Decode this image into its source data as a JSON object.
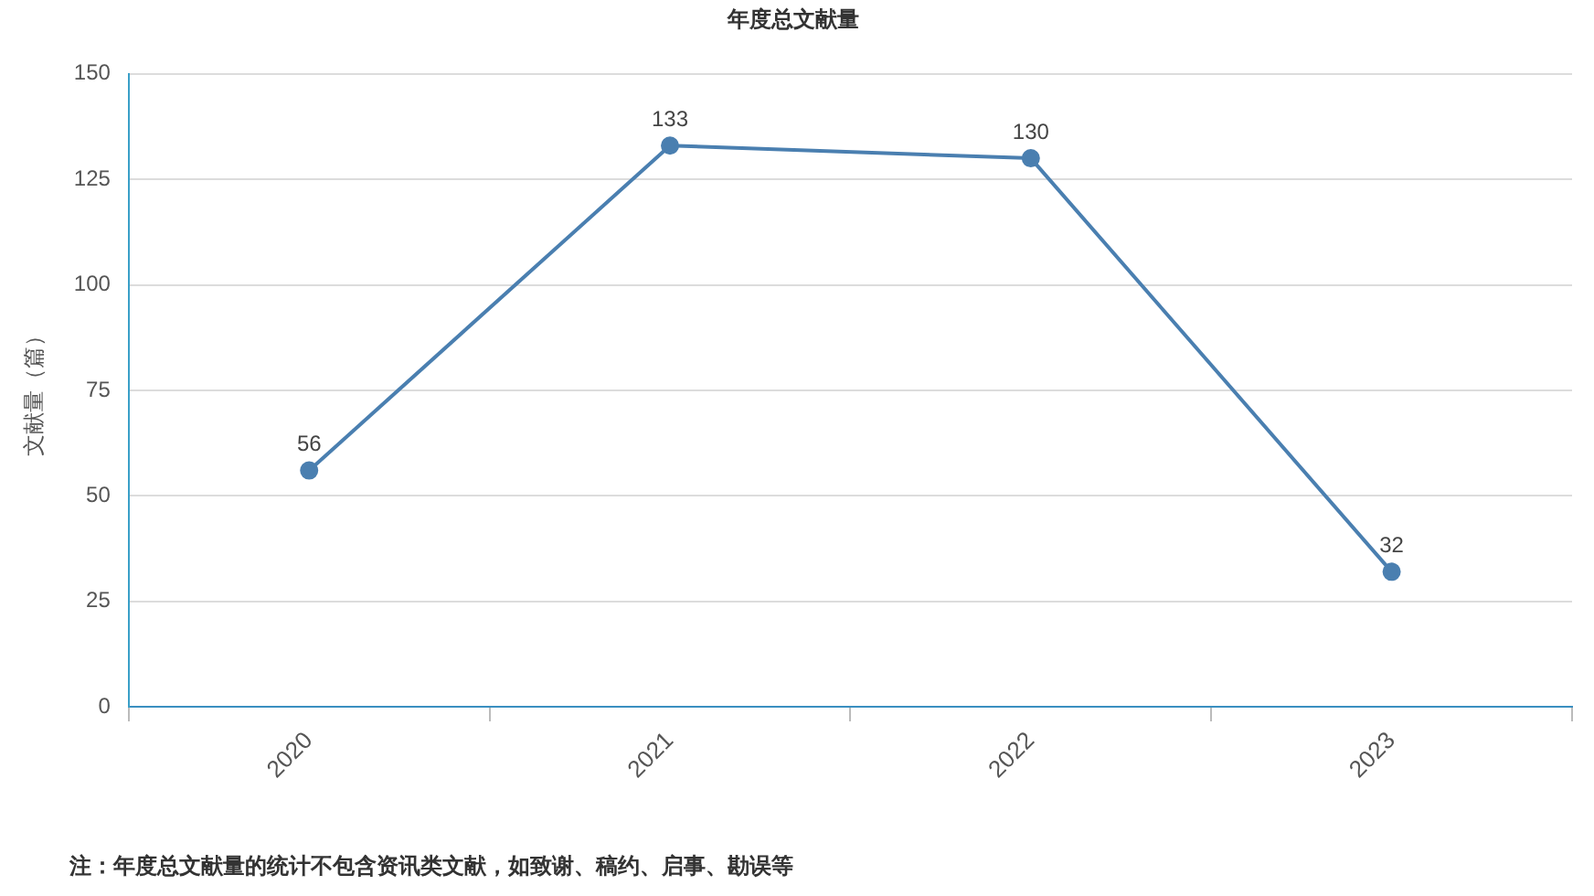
{
  "chart_data": {
    "type": "line",
    "title": "年度总文献量",
    "ylabel": "文献量（篇）",
    "categories": [
      "2020",
      "2021",
      "2022",
      "2023"
    ],
    "series": [
      {
        "color": "#4a7fb0",
        "values": [
          56,
          133,
          130,
          32
        ]
      }
    ],
    "ylim": [
      0,
      150
    ],
    "yticks": [
      0,
      25,
      50,
      75,
      100,
      125,
      150
    ],
    "grid": "y",
    "legend": false,
    "marker": "circle",
    "line_style": "solid",
    "data_labels": true,
    "annotations": [
      "注：年度总文献量的统计不包含资讯类文献，如致谢、稿约、启事、勘误等"
    ]
  }
}
